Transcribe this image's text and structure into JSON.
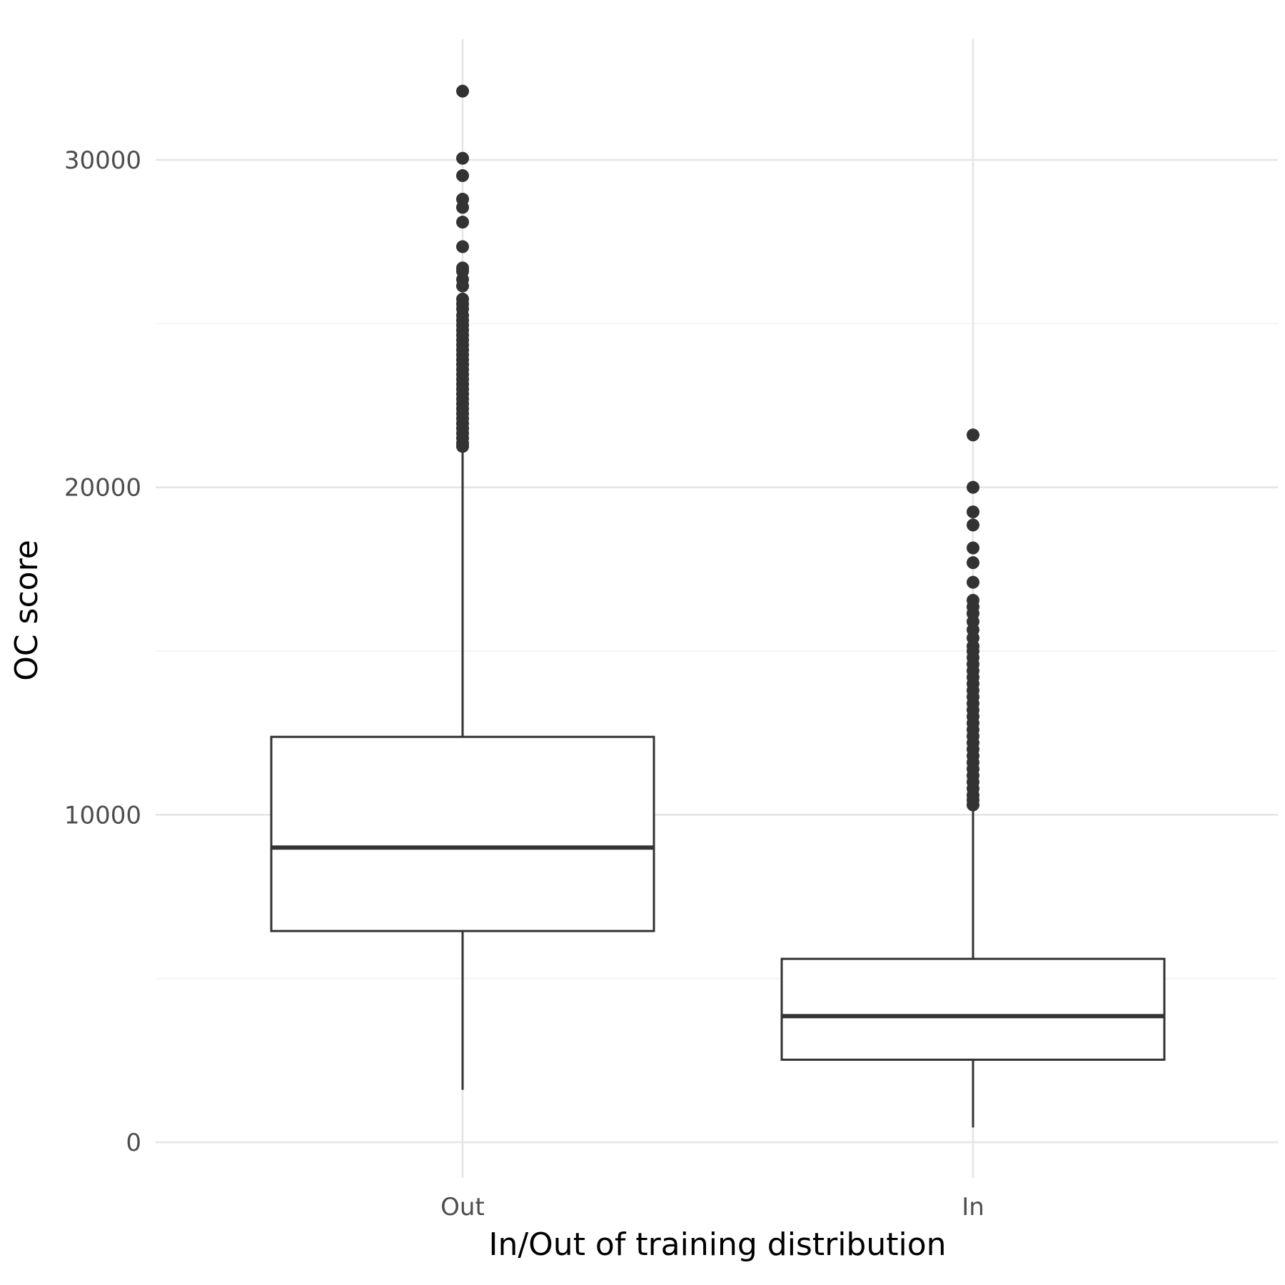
{
  "chart_data": {
    "type": "box",
    "title": "",
    "xlabel": "In/Out of training distribution",
    "ylabel": "OC score",
    "categories": [
      "Out",
      "In"
    ],
    "y_ticks": [
      0,
      10000,
      20000,
      30000
    ],
    "y_tick_labels": [
      "0",
      "10000",
      "20000",
      "30000"
    ],
    "ylim": [
      -1000,
      34500
    ],
    "grid": true,
    "colors": {
      "box_stroke": "#333333",
      "box_fill": "#ffffff",
      "grid_major": "#e5e5e5",
      "grid_minor": "#f3f3f3",
      "tick_text": "#4d4d4d"
    },
    "boxes": [
      {
        "category": "Out",
        "whisker_low": 1600,
        "q1": 6450,
        "median": 9000,
        "q3": 12380,
        "whisker_high": 21200,
        "outliers": [
          32100,
          30050,
          29520,
          28800,
          28550,
          28100,
          27350,
          26700,
          26600,
          26350,
          26150,
          25750,
          25600,
          25450,
          25250,
          25100,
          24950,
          24800,
          24650,
          24500,
          24350,
          24200,
          24050,
          23900,
          23750,
          23600,
          23450,
          23300,
          23150,
          23000,
          22850,
          22700,
          22550,
          22400,
          22250,
          22100,
          21950,
          21800,
          21650,
          21500,
          21350,
          21250
        ]
      },
      {
        "category": "In",
        "whisker_low": 450,
        "q1": 2520,
        "median": 3850,
        "q3": 5600,
        "whisker_high": 10250,
        "outliers": [
          21600,
          20000,
          19250,
          18850,
          18150,
          17700,
          17100,
          16550,
          16350,
          16150,
          15900,
          15650,
          15400,
          15150,
          15000,
          14800,
          14600,
          14400,
          14200,
          14000,
          13800,
          13600,
          13400,
          13200,
          13000,
          12800,
          12600,
          12400,
          12200,
          12000,
          11800,
          11600,
          11400,
          11200,
          11000,
          10800,
          10600,
          10450,
          10300
        ]
      }
    ]
  }
}
